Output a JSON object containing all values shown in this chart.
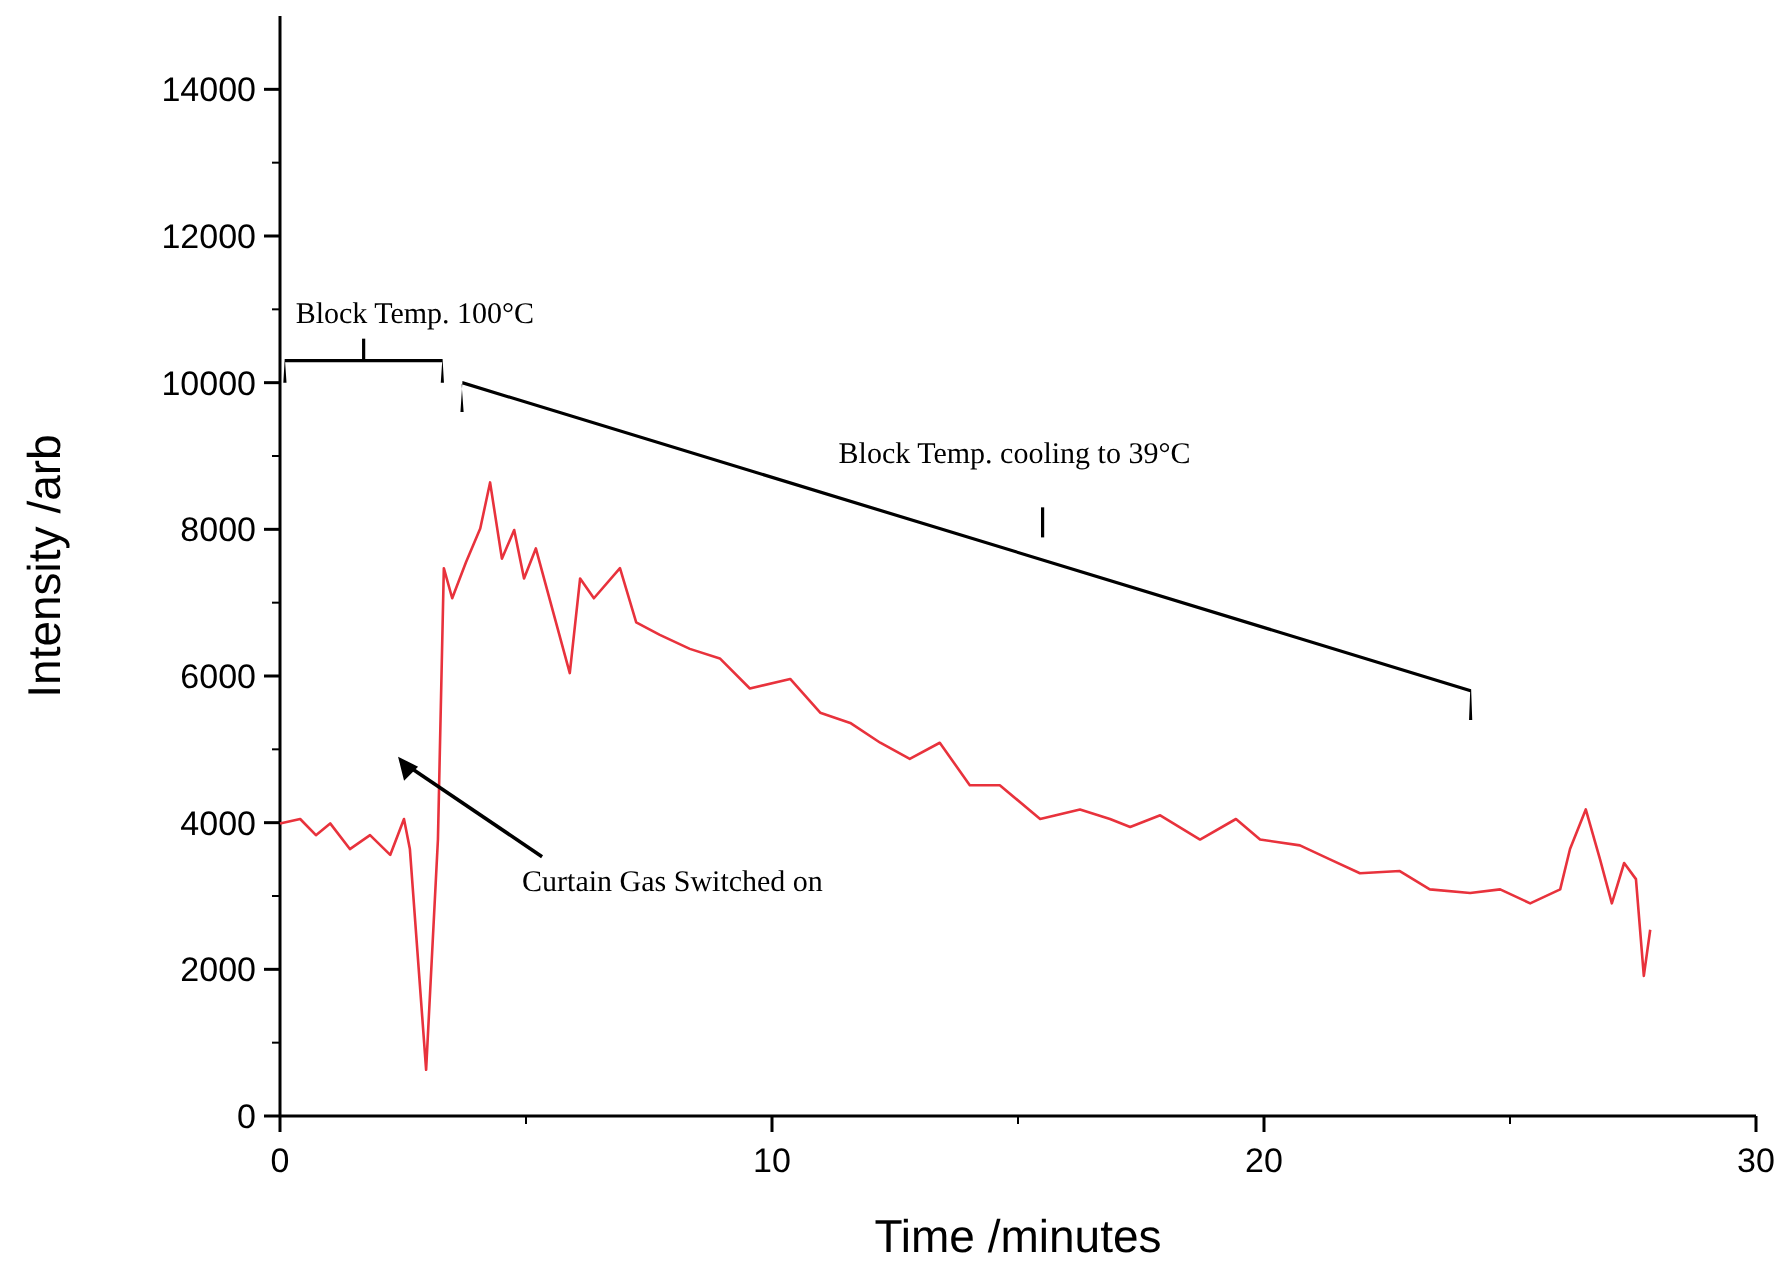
{
  "chart_data": {
    "type": "line",
    "xlabel": "Time /minutes",
    "ylabel": "Intensity /arb",
    "xlim": [
      0,
      30
    ],
    "xticks": [
      0,
      10,
      20,
      30
    ],
    "ylim": [
      0,
      15000
    ],
    "yticks": [
      0,
      2000,
      4000,
      6000,
      8000,
      10000,
      12000,
      14000
    ],
    "grid": false,
    "line_style": "solid",
    "series": [
      {
        "color": "#e8323c",
        "x": [
          0,
          0.41,
          0.73,
          1.02,
          1.42,
          1.83,
          2.24,
          2.52,
          2.64,
          2.97,
          3.21,
          3.33,
          3.5,
          3.78,
          4.07,
          4.27,
          4.51,
          4.76,
          4.96,
          5.2,
          5.89,
          6.1,
          6.38,
          6.91,
          7.24,
          7.72,
          8.33,
          8.94,
          9.55,
          10.37,
          10.98,
          11.59,
          12.2,
          12.8,
          13.41,
          14.02,
          14.63,
          15.45,
          16.26,
          16.87,
          17.28,
          17.89,
          18.7,
          19.43,
          19.92,
          20.73,
          21.34,
          21.95,
          22.76,
          23.37,
          24.19,
          24.8,
          25.41,
          26.02,
          26.22,
          26.54,
          26.83,
          27.07,
          27.32,
          27.56,
          27.72,
          27.85
        ],
        "values": [
          3990,
          4050,
          3830,
          3990,
          3640,
          3830,
          3560,
          4050,
          3640,
          630,
          3770,
          7470,
          7060,
          7550,
          8010,
          8640,
          7600,
          7990,
          7330,
          7740,
          6040,
          7330,
          7060,
          7470,
          6730,
          6560,
          6370,
          6240,
          5830,
          5960,
          5500,
          5360,
          5090,
          4870,
          5090,
          4510,
          4510,
          4050,
          4180,
          4050,
          3940,
          4100,
          3770,
          4050,
          3770,
          3690,
          3500,
          3310,
          3340,
          3090,
          3040,
          3090,
          2900,
          3090,
          3640,
          4180,
          3500,
          2900,
          3450,
          3230,
          1910,
          2540
        ]
      }
    ],
    "annotations": [
      "Block Temp. 100°C",
      "Block Temp. cooling to 39°C",
      "Curtain Gas Switched on"
    ]
  }
}
